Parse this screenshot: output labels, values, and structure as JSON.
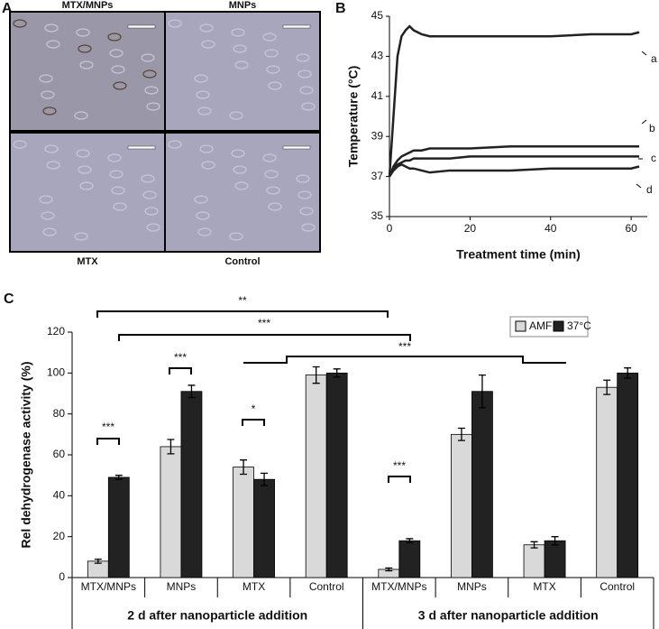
{
  "panel_a": {
    "label": "A",
    "images": [
      "MTX/MNPs",
      "MNPs",
      "MTX",
      "Control"
    ]
  },
  "chart_data": [
    {
      "type": "line",
      "panel_label": "B",
      "x_label": "Treatment time (min)",
      "y_label": "Temperature (°C)",
      "x": [
        0,
        1,
        2,
        3,
        4,
        5,
        6,
        8,
        10,
        15,
        20,
        30,
        40,
        50,
        60,
        62
      ],
      "series": [
        {
          "name": "a",
          "color": "#222222",
          "values": [
            37,
            40,
            43,
            44,
            44.3,
            44.5,
            44.3,
            44.1,
            44,
            44,
            44,
            44,
            44,
            44.1,
            44.1,
            44.2
          ]
        },
        {
          "name": "b",
          "color": "#222222",
          "values": [
            37,
            37.5,
            37.8,
            38,
            38.1,
            38.2,
            38.3,
            38.3,
            38.4,
            38.4,
            38.4,
            38.5,
            38.5,
            38.5,
            38.5,
            38.5
          ]
        },
        {
          "name": "c",
          "color": "#222222",
          "values": [
            37,
            37.4,
            37.6,
            37.7,
            37.8,
            37.8,
            37.9,
            37.9,
            37.9,
            37.9,
            38,
            38,
            38,
            38,
            38,
            38
          ]
        },
        {
          "name": "d",
          "color": "#222222",
          "values": [
            37,
            37.3,
            37.5,
            37.6,
            37.5,
            37.4,
            37.4,
            37.3,
            37.2,
            37.3,
            37.3,
            37.3,
            37.4,
            37.4,
            37.4,
            37.5
          ]
        }
      ],
      "xlim": [
        0,
        64
      ],
      "xticks": [
        0,
        20,
        40,
        60
      ],
      "ylim": [
        35,
        45
      ],
      "yticks": [
        35,
        37,
        39,
        41,
        43,
        45
      ]
    },
    {
      "type": "bar",
      "panel_label": "C",
      "y_label": "Rel dehydrogenase activity (%)",
      "categories": [
        "MTX/MNPs",
        "MNPs",
        "MTX",
        "Control",
        "MTX/MNPs",
        "MNPs",
        "MTX",
        "Control"
      ],
      "group_labels": [
        "2 d after nanoparticle addition",
        "3 d after nanoparticle addition"
      ],
      "series": [
        {
          "name": "AMF",
          "color": "#d9d9d9",
          "values": [
            8,
            64,
            54,
            99,
            4,
            70,
            16,
            93
          ],
          "errors": [
            1,
            3.5,
            3.5,
            4,
            0.7,
            3,
            1.5,
            3.5
          ]
        },
        {
          "name": "37°C",
          "color": "#222222",
          "values": [
            49,
            91,
            48,
            100,
            18,
            91,
            18,
            100
          ],
          "errors": [
            1,
            3,
            3,
            2,
            1,
            8,
            2,
            2.5
          ]
        }
      ],
      "ylim": [
        0,
        120
      ],
      "yticks": [
        0,
        20,
        40,
        60,
        80,
        100,
        120
      ],
      "annotations": [
        "**",
        "***",
        "***",
        "***",
        "***",
        "*",
        "***"
      ]
    }
  ]
}
